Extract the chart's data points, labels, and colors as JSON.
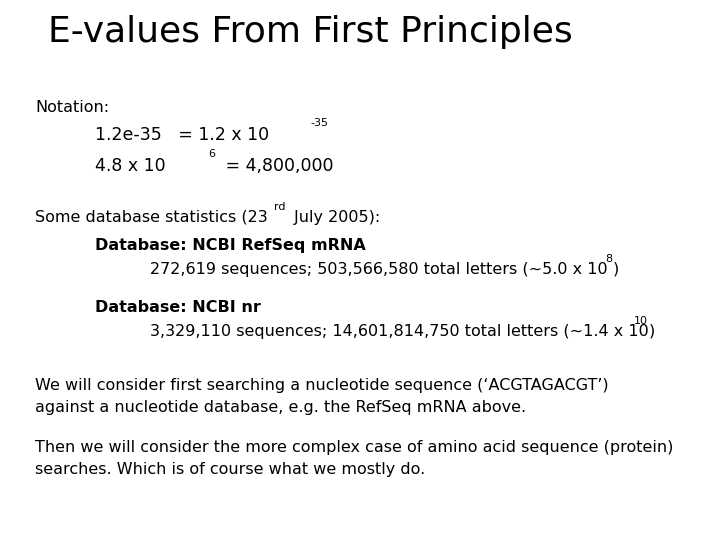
{
  "title": "E-values From First Principles",
  "background_color": "#ffffff",
  "title_fontsize": 26,
  "body_fontsize": 11.5,
  "super_fontsize": 8,
  "notation_fontsize": 12.5
}
